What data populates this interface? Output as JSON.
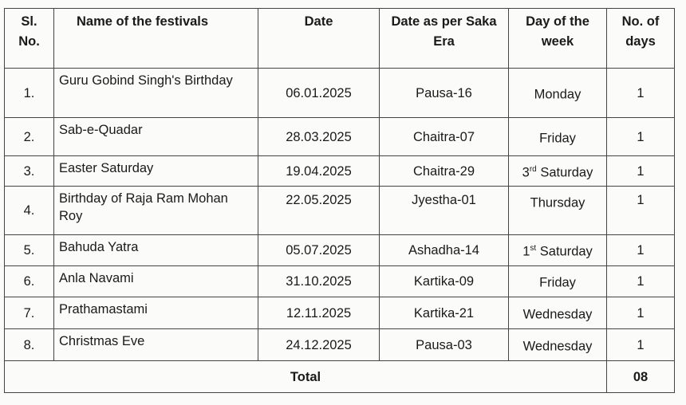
{
  "headers": {
    "sl": "Sl. No.",
    "name": "Name of the festivals",
    "date": "Date",
    "saka": "Date as per Saka Era",
    "day": "Day of the week",
    "days": "No. of days"
  },
  "rows": [
    {
      "sl": "1.",
      "name": "Guru Gobind Singh's Birthday",
      "date": "06.01.2025",
      "saka": "Pausa-16",
      "day": "Monday",
      "day_sup": "",
      "day_rest": "",
      "days": "1"
    },
    {
      "sl": "2.",
      "name": "Sab-e-Quadar",
      "date": "28.03.2025",
      "saka": "Chaitra-07",
      "day": "Friday",
      "day_sup": "",
      "day_rest": "",
      "days": "1"
    },
    {
      "sl": "3.",
      "name": "Easter Saturday",
      "date": "19.04.2025",
      "saka": "Chaitra-29",
      "day": "3",
      "day_sup": "rd",
      "day_rest": " Saturday",
      "days": "1"
    },
    {
      "sl": "4.",
      "name": "Birthday of Raja Ram Mohan Roy",
      "date": "22.05.2025",
      "saka": "Jyestha-01",
      "day": "Thursday",
      "day_sup": "",
      "day_rest": "",
      "days": "1"
    },
    {
      "sl": "5.",
      "name": "Bahuda Yatra",
      "date": "05.07.2025",
      "saka": "Ashadha-14",
      "day": "1",
      "day_sup": "st",
      "day_rest": " Saturday",
      "days": "1"
    },
    {
      "sl": "6.",
      "name": "Anla Navami",
      "date": "31.10.2025",
      "saka": "Kartika-09",
      "day": "Friday",
      "day_sup": "",
      "day_rest": "",
      "days": "1"
    },
    {
      "sl": "7.",
      "name": "Prathamastami",
      "date": "12.11.2025",
      "saka": "Kartika-21",
      "day": "Wednesday",
      "day_sup": "",
      "day_rest": "",
      "days": "1"
    },
    {
      "sl": "8.",
      "name": "Christmas Eve",
      "date": "24.12.2025",
      "saka": "Pausa-03",
      "day": "Wednesday",
      "day_sup": "",
      "day_rest": "",
      "days": "1"
    }
  ],
  "footer": {
    "total_label": "Total",
    "total_days": "08"
  }
}
